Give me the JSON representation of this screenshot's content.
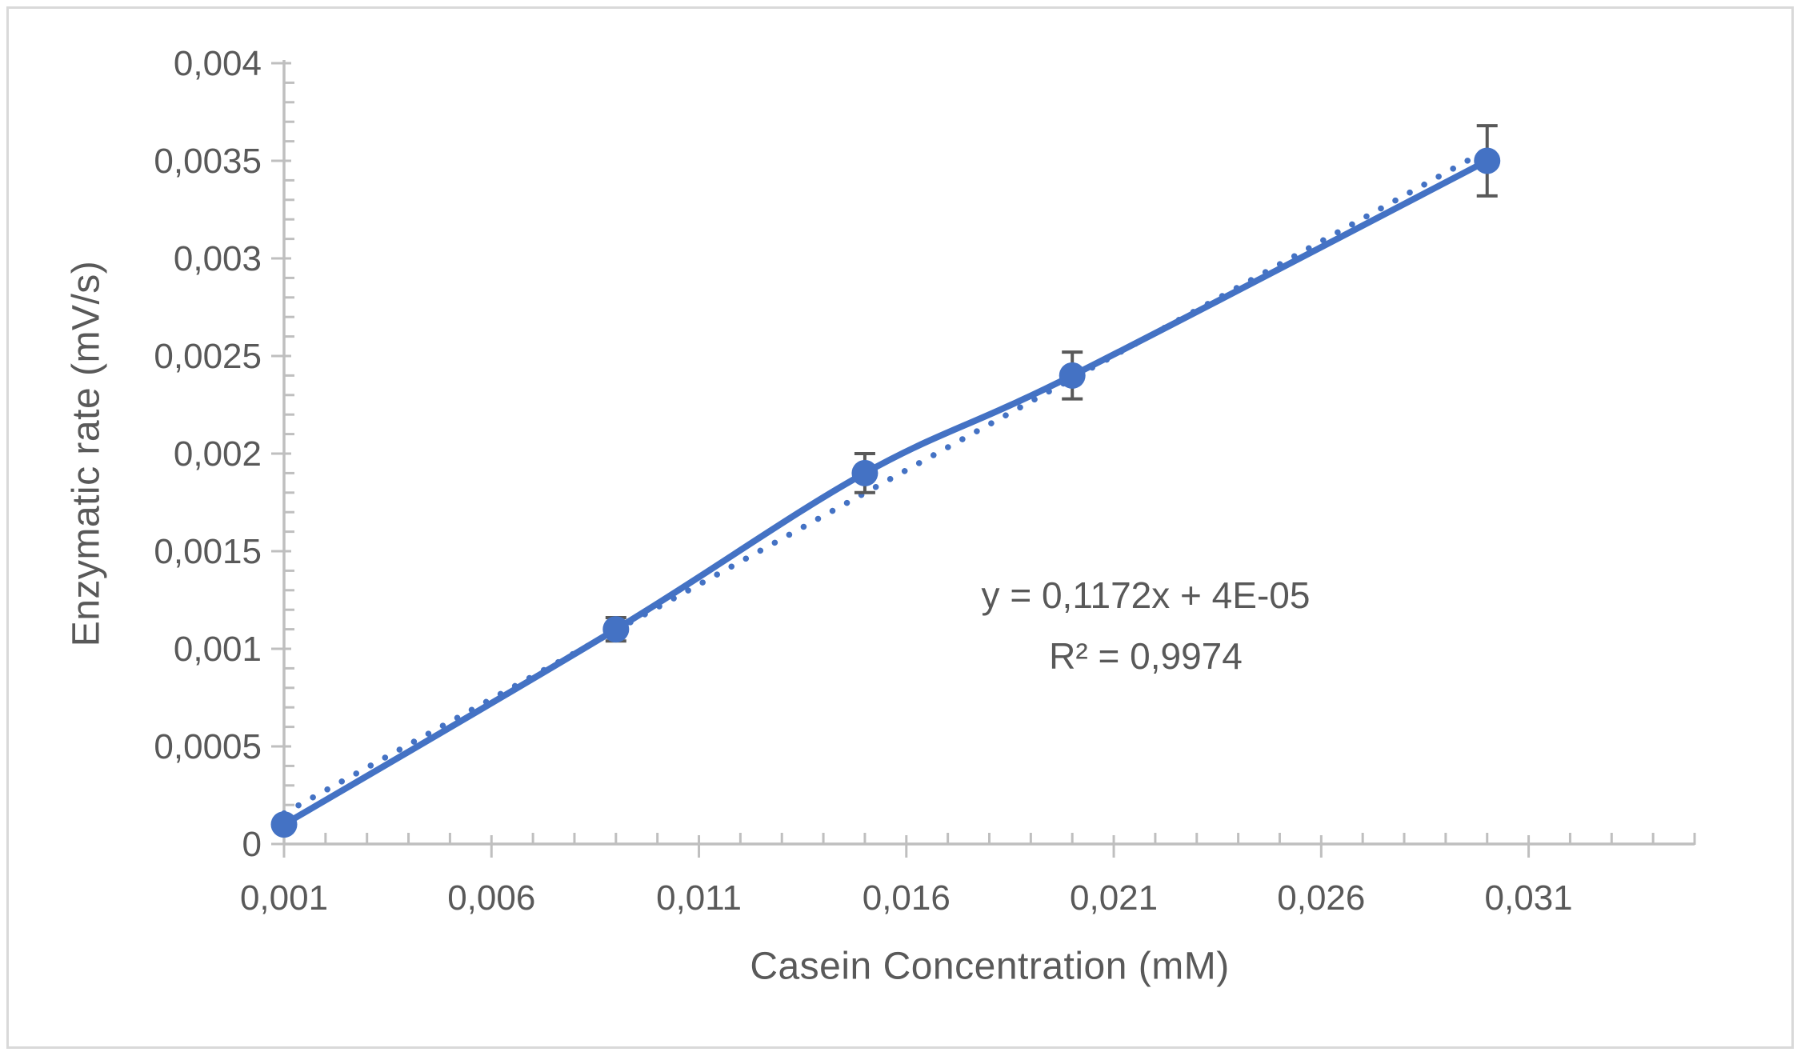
{
  "chart_data": {
    "type": "scatter",
    "title": "",
    "xlabel": "Casein Concentration (mM)",
    "ylabel": "Enzymatic rate (mV/s)",
    "decimal_separator": ",",
    "grid": false,
    "legend": "none",
    "x": [
      0.001,
      0.009,
      0.015,
      0.02,
      0.03
    ],
    "y": [
      0.0001,
      0.0011,
      0.0019,
      0.0024,
      0.0035
    ],
    "y_error": [
      2e-05,
      6e-05,
      0.0001,
      0.00012,
      0.00018
    ],
    "x_axis": {
      "min": 0.001,
      "max": 0.035,
      "major_step": 0.005,
      "minor_step": 0.001,
      "tick_labels": [
        "0,001",
        "0,006",
        "0,011",
        "0,016",
        "0,021",
        "0,026",
        "0,031"
      ]
    },
    "y_axis": {
      "min": 0,
      "max": 0.004,
      "major_step": 0.0005,
      "minor_step": 0.0001,
      "tick_labels": [
        "0",
        "0,0005",
        "0,001",
        "0,0015",
        "0,002",
        "0,0025",
        "0,003",
        "0,0035",
        "0,004"
      ]
    },
    "trendline": {
      "slope": 0.1172,
      "intercept": 4e-05,
      "x_start": 0.001,
      "x_end": 0.03,
      "equation_line1": "y = 0,1172x + 4E-05",
      "equation_line2": "R² = 0,9974"
    },
    "colors": {
      "series": "#4472C4",
      "axis": "#BFBFBF",
      "tick_text": "#595959",
      "title_text": "#595959",
      "equation_text": "#595959",
      "error_bar": "#595959",
      "chart_border": "#D9D9D9",
      "background": "#FFFFFF"
    }
  }
}
